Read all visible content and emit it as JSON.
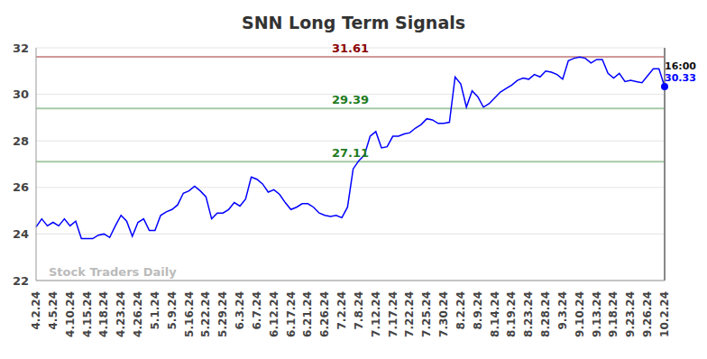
{
  "chart_data": {
    "type": "line",
    "title": "SNN Long Term Signals",
    "watermark": "Stock Traders Daily",
    "annotation": "16:00",
    "color": "#0000ff",
    "grid": true,
    "ylim": [
      22,
      32
    ],
    "yticks": [
      22,
      24,
      26,
      28,
      30,
      32
    ],
    "reference_lines": [
      {
        "value": 31.61,
        "color": "#8b0000"
      },
      {
        "value": 29.39,
        "color": "#1e7b1e"
      },
      {
        "value": 27.11,
        "color": "#1e7b1e"
      }
    ],
    "categories": [
      "4.2.24",
      null,
      null,
      "4.5.24",
      null,
      null,
      "4.10.24",
      null,
      null,
      "4.15.24",
      null,
      null,
      "4.18.24",
      null,
      null,
      "4.23.24",
      null,
      null,
      "4.26.24",
      null,
      null,
      "5.1.24",
      null,
      null,
      "5.9.24",
      null,
      null,
      "5.16.24",
      null,
      null,
      "5.22.24",
      null,
      null,
      "5.29.24",
      null,
      null,
      "6.3.24",
      null,
      null,
      "6.7.24",
      null,
      null,
      "6.12.24",
      null,
      null,
      "6.17.24",
      null,
      null,
      "6.21.24",
      null,
      null,
      "6.26.24",
      null,
      null,
      "7.2.24",
      null,
      null,
      "7.8.24",
      null,
      null,
      "7.12.24",
      null,
      null,
      "7.17.24",
      null,
      null,
      "7.22.24",
      null,
      null,
      "7.25.24",
      null,
      null,
      "7.30.24",
      null,
      null,
      "8.2.24",
      null,
      null,
      "8.9.24",
      null,
      null,
      "8.14.24",
      null,
      null,
      "8.19.24",
      null,
      null,
      "8.23.24",
      null,
      null,
      "8.28.24",
      null,
      null,
      "9.3.24",
      null,
      null,
      "9.10.24",
      null,
      null,
      "9.13.24",
      null,
      null,
      "9.18.24",
      null,
      null,
      "9.23.24",
      null,
      null,
      "9.26.24",
      null,
      null,
      "10.2.24"
    ],
    "values": [
      24.3,
      24.65,
      24.35,
      24.5,
      24.35,
      24.65,
      24.35,
      24.55,
      23.8,
      23.8,
      23.8,
      23.95,
      24.0,
      23.85,
      24.35,
      24.8,
      24.55,
      23.9,
      24.5,
      24.65,
      24.15,
      24.15,
      24.8,
      24.95,
      25.05,
      25.25,
      25.75,
      25.85,
      26.05,
      25.85,
      25.6,
      24.65,
      24.9,
      24.9,
      25.05,
      25.35,
      25.2,
      25.5,
      26.45,
      26.35,
      26.15,
      25.8,
      25.9,
      25.7,
      25.35,
      25.05,
      25.15,
      25.3,
      25.3,
      25.15,
      24.9,
      24.8,
      24.75,
      24.8,
      24.7,
      25.15,
      26.8,
      27.15,
      27.4,
      28.2,
      28.4,
      27.7,
      27.75,
      28.2,
      28.2,
      28.3,
      28.35,
      28.55,
      28.7,
      28.95,
      28.9,
      28.75,
      28.75,
      28.8,
      30.75,
      30.45,
      29.45,
      30.15,
      29.9,
      29.45,
      29.6,
      29.85,
      30.1,
      30.25,
      30.4,
      30.6,
      30.7,
      30.65,
      30.85,
      30.75,
      31.0,
      30.95,
      30.85,
      30.65,
      31.45,
      31.55,
      31.6,
      31.55,
      31.35,
      31.5,
      31.5,
      30.9,
      30.7,
      30.9,
      30.55,
      30.6,
      30.55,
      30.5,
      30.8,
      31.1,
      31.1,
      30.33
    ]
  }
}
